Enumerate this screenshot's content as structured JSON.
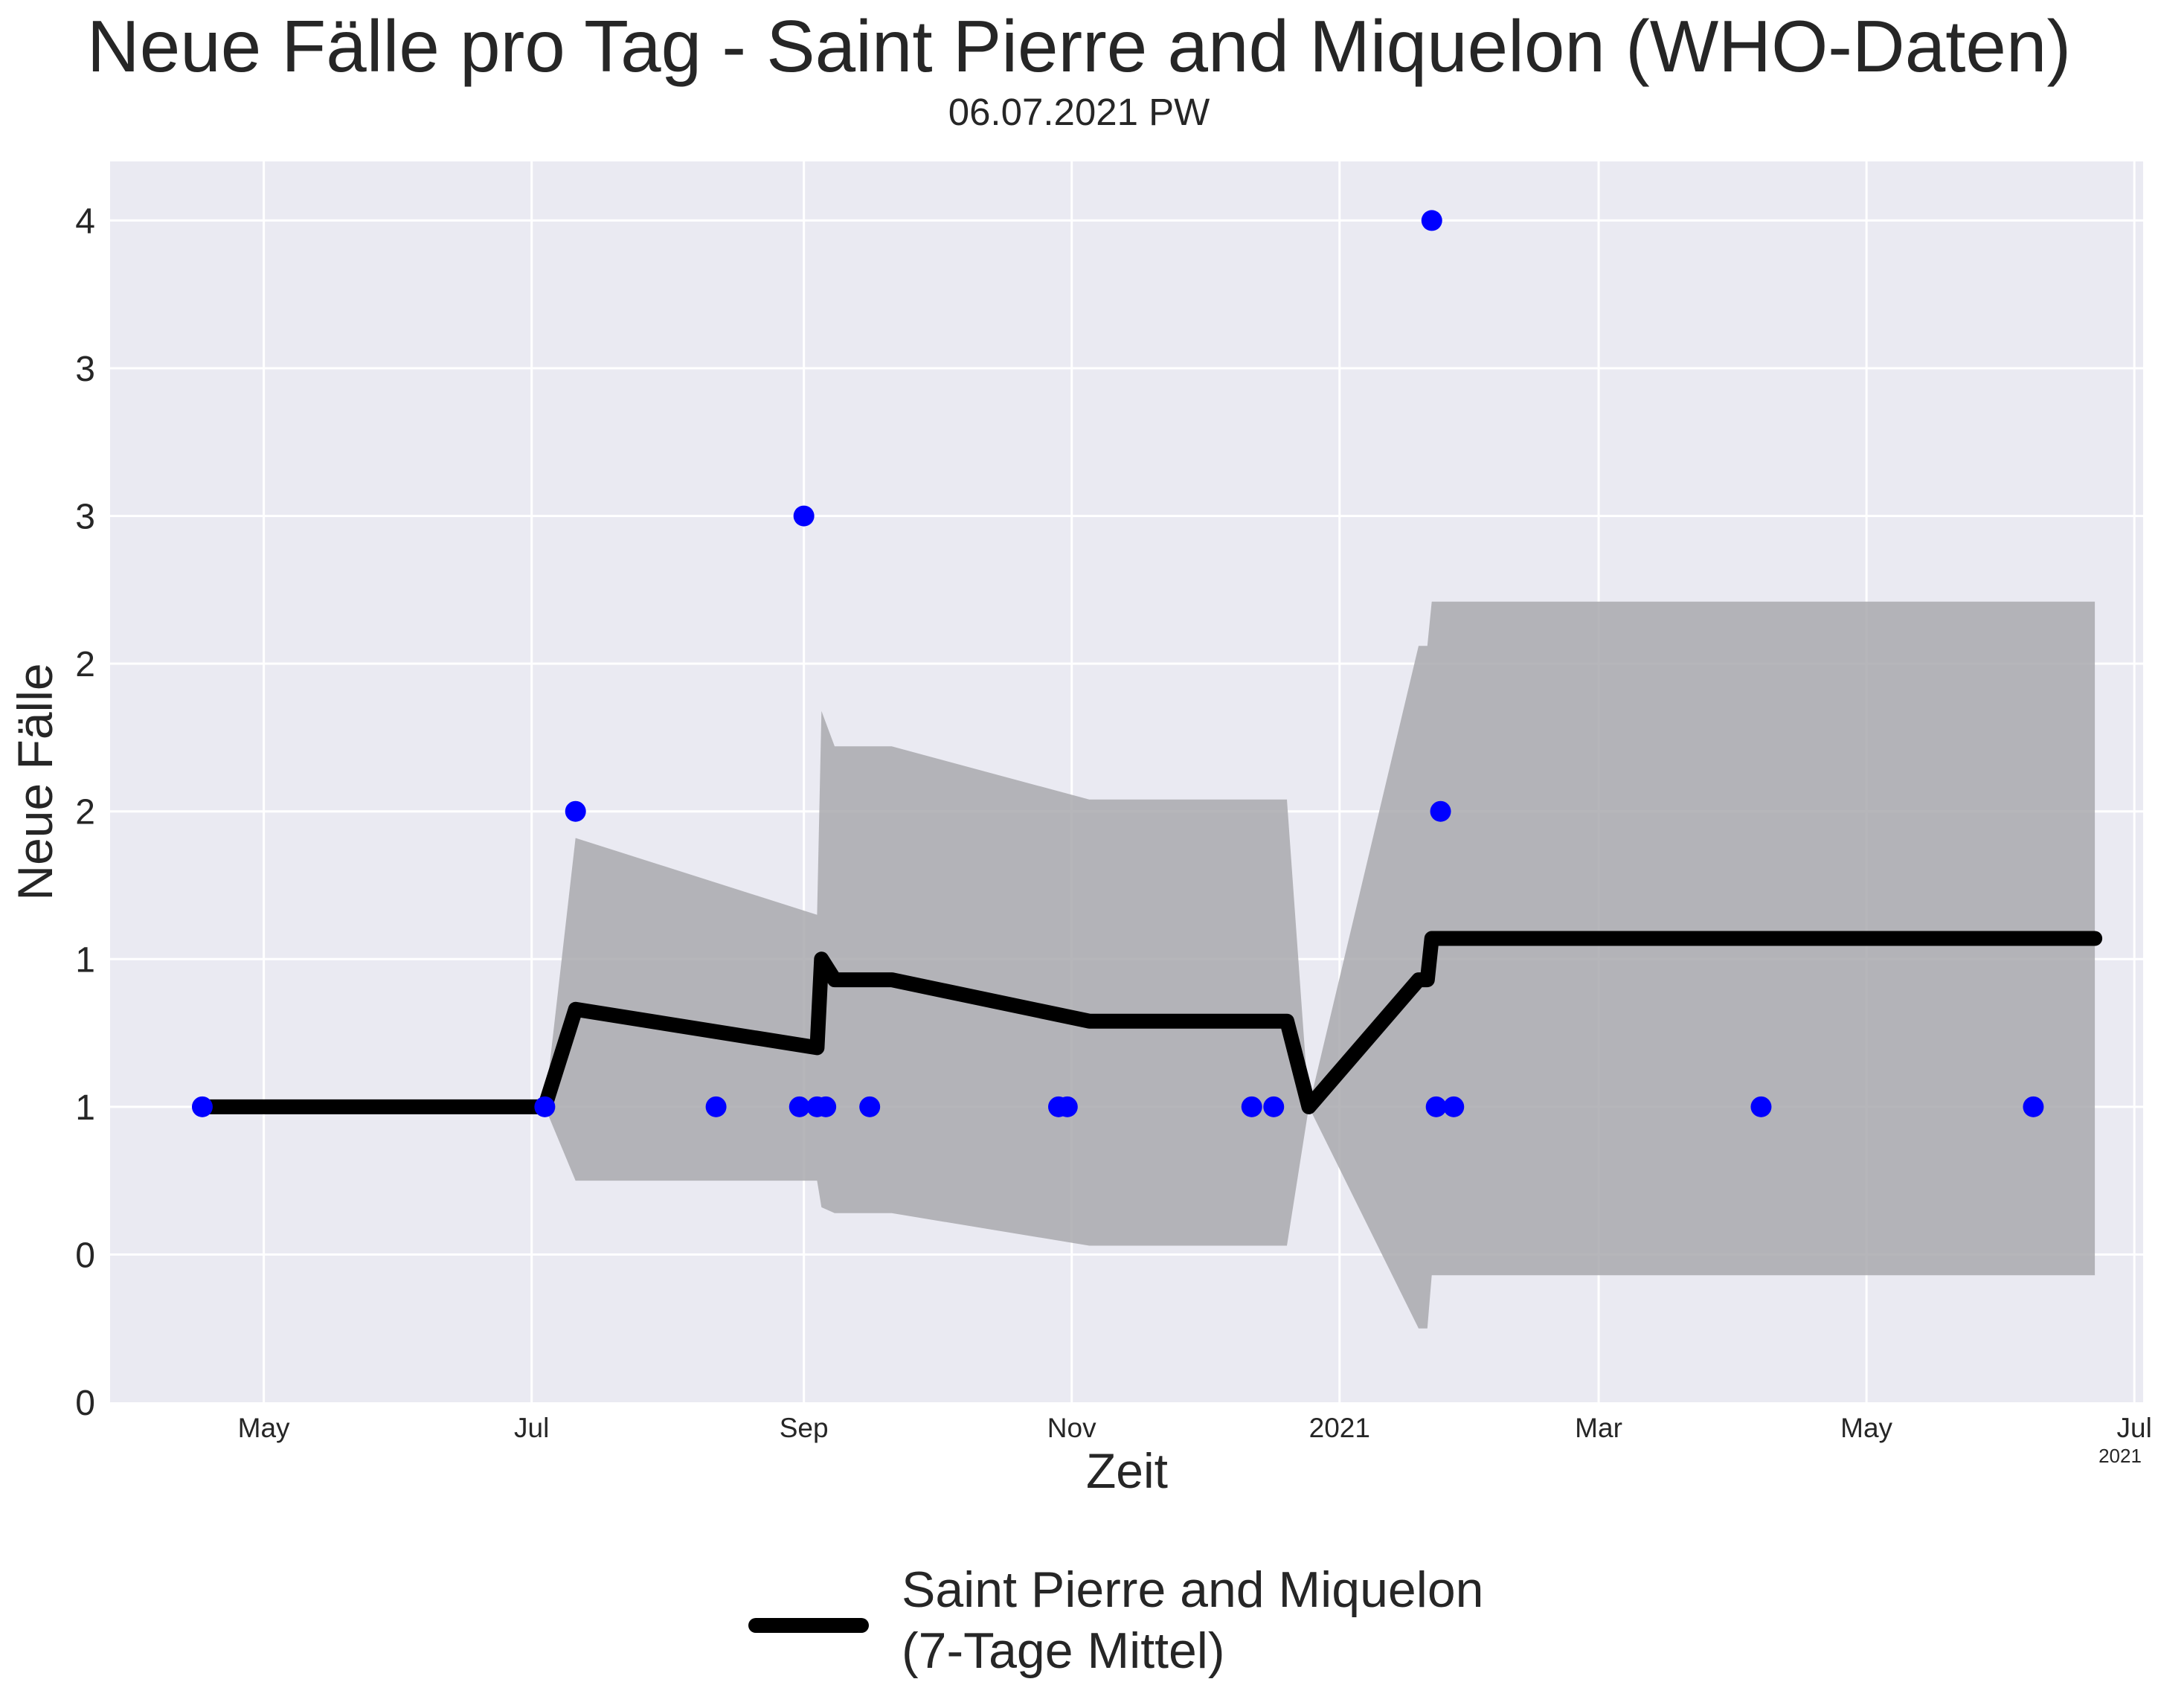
{
  "chart_data": {
    "type": "line",
    "title": "Neue Fälle pro Tag - Saint Pierre and Miquelon (WHO-Daten)",
    "subtitle": "06.07.2021 PW",
    "xlabel": "Zeit",
    "ylabel": "Neue Fälle",
    "x_range": [
      "2020-03-27",
      "2021-07-03"
    ],
    "y_range": [
      -0.5,
      3.7
    ],
    "grid": true,
    "x_ticks": [
      {
        "date": "2020-05-01",
        "label": "May"
      },
      {
        "date": "2020-07-01",
        "label": "Jul"
      },
      {
        "date": "2020-09-01",
        "label": "Sep"
      },
      {
        "date": "2020-11-01",
        "label": "Nov"
      },
      {
        "date": "2021-01-01",
        "label": "2021"
      },
      {
        "date": "2021-03-01",
        "label": "Mar"
      },
      {
        "date": "2021-05-01",
        "label": "May"
      },
      {
        "date": "2021-07-01",
        "label": "Jul"
      }
    ],
    "x_offset_label": "2021",
    "y_ticks": [
      {
        "value": -0.5,
        "label": "0"
      },
      {
        "value": 0,
        "label": "0"
      },
      {
        "value": 0.5,
        "label": "1"
      },
      {
        "value": 1,
        "label": "1"
      },
      {
        "value": 1.5,
        "label": "2"
      },
      {
        "value": 2,
        "label": "2"
      },
      {
        "value": 2.5,
        "label": "3"
      },
      {
        "value": 3,
        "label": "3"
      },
      {
        "value": 3.5,
        "label": "4"
      }
    ],
    "series": [
      {
        "name": "Saint Pierre and Miquelon\n(7-Tage Mittel)",
        "kind": "line",
        "color": "#000000",
        "points": [
          {
            "x": "2020-04-17",
            "y": 0.5
          },
          {
            "x": "2020-07-04",
            "y": 0.5
          },
          {
            "x": "2020-07-11",
            "y": 0.83
          },
          {
            "x": "2020-09-04",
            "y": 0.7
          },
          {
            "x": "2020-09-05",
            "y": 1.0
          },
          {
            "x": "2020-09-08",
            "y": 0.93
          },
          {
            "x": "2020-09-21",
            "y": 0.93
          },
          {
            "x": "2020-11-05",
            "y": 0.79
          },
          {
            "x": "2020-12-20",
            "y": 0.79
          },
          {
            "x": "2020-12-25",
            "y": 0.5
          },
          {
            "x": "2021-01-19",
            "y": 0.93
          },
          {
            "x": "2021-01-21",
            "y": 0.93
          },
          {
            "x": "2021-01-22",
            "y": 1.07
          },
          {
            "x": "2021-06-22",
            "y": 1.07
          }
        ]
      },
      {
        "name": "",
        "kind": "band",
        "color": "#a9a9ae",
        "points": [
          {
            "x": "2020-04-17",
            "lo": 0.5,
            "hi": 0.5
          },
          {
            "x": "2020-07-04",
            "lo": 0.5,
            "hi": 0.5
          },
          {
            "x": "2020-07-11",
            "lo": 0.25,
            "hi": 1.41
          },
          {
            "x": "2020-09-04",
            "lo": 0.25,
            "hi": 1.15
          },
          {
            "x": "2020-09-05",
            "lo": 0.16,
            "hi": 1.84
          },
          {
            "x": "2020-09-08",
            "lo": 0.14,
            "hi": 1.72
          },
          {
            "x": "2020-09-21",
            "lo": 0.14,
            "hi": 1.72
          },
          {
            "x": "2020-11-05",
            "lo": 0.03,
            "hi": 1.54
          },
          {
            "x": "2020-12-20",
            "lo": 0.03,
            "hi": 1.54
          },
          {
            "x": "2020-12-25",
            "lo": 0.5,
            "hi": 0.5
          },
          {
            "x": "2021-01-19",
            "lo": -0.25,
            "hi": 2.06
          },
          {
            "x": "2021-01-21",
            "lo": -0.25,
            "hi": 2.06
          },
          {
            "x": "2021-01-22",
            "lo": -0.07,
            "hi": 2.21
          },
          {
            "x": "2021-06-22",
            "lo": -0.07,
            "hi": 2.21
          }
        ]
      },
      {
        "name": "",
        "kind": "scatter",
        "color": "#0000ff",
        "points": [
          {
            "x": "2020-04-17",
            "y": 0.5
          },
          {
            "x": "2020-07-04",
            "y": 0.5
          },
          {
            "x": "2020-07-11",
            "y": 1.5
          },
          {
            "x": "2020-08-12",
            "y": 0.5
          },
          {
            "x": "2020-08-31",
            "y": 0.5
          },
          {
            "x": "2020-09-01",
            "y": 2.5
          },
          {
            "x": "2020-09-04",
            "y": 0.5
          },
          {
            "x": "2020-09-06",
            "y": 0.5
          },
          {
            "x": "2020-09-16",
            "y": 0.5
          },
          {
            "x": "2020-10-29",
            "y": 0.5
          },
          {
            "x": "2020-10-31",
            "y": 0.5
          },
          {
            "x": "2020-12-12",
            "y": 0.5
          },
          {
            "x": "2020-12-17",
            "y": 0.5
          },
          {
            "x": "2021-01-22",
            "y": 3.5
          },
          {
            "x": "2021-01-23",
            "y": 0.5
          },
          {
            "x": "2021-01-24",
            "y": 1.5
          },
          {
            "x": "2021-01-27",
            "y": 0.5
          },
          {
            "x": "2021-04-07",
            "y": 0.5
          },
          {
            "x": "2021-06-08",
            "y": 0.5
          }
        ]
      }
    ],
    "legend_position": "below"
  }
}
